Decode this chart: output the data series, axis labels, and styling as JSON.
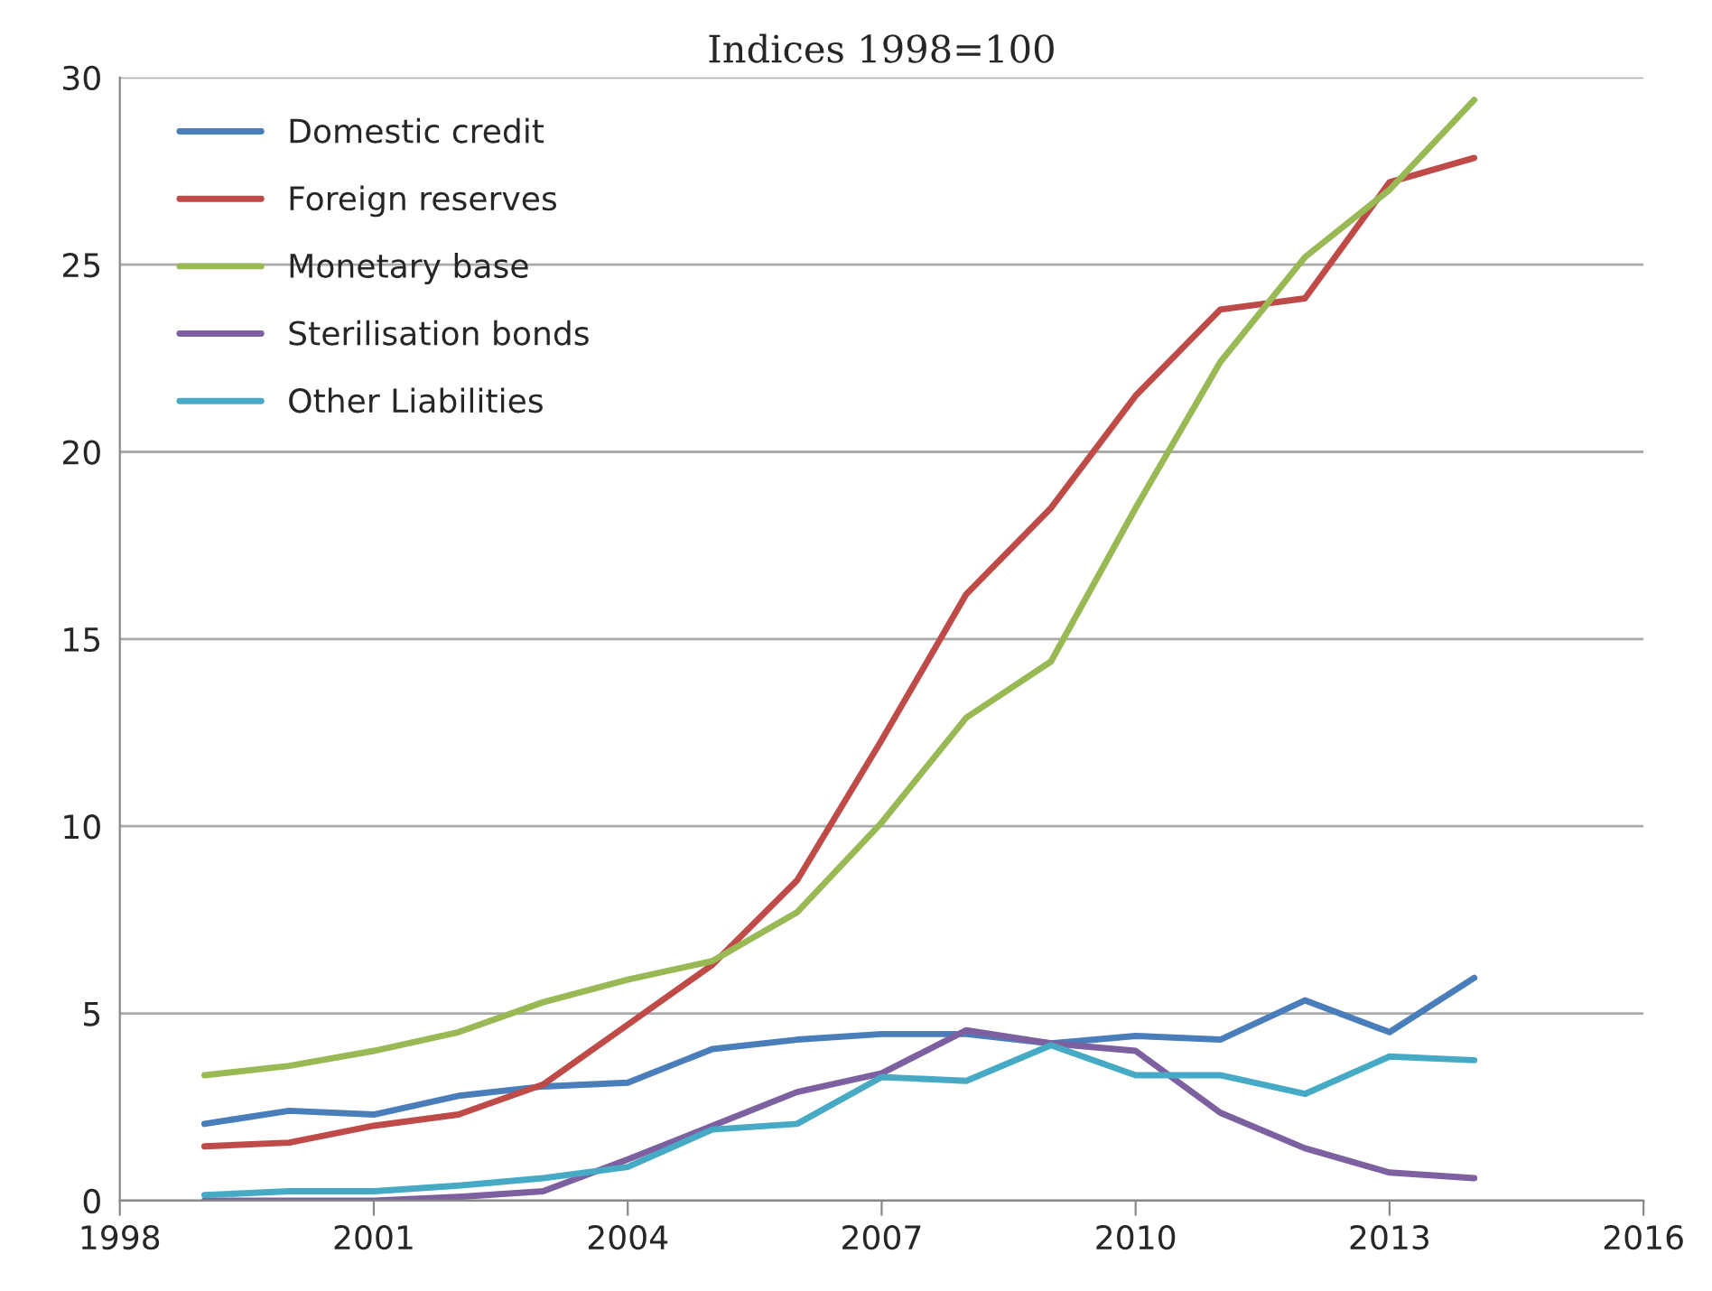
{
  "chart_data": {
    "type": "line",
    "title": "Indices 1998=100",
    "x": [
      1999,
      2000,
      2001,
      2002,
      2003,
      2004,
      2005,
      2006,
      2007,
      2008,
      2009,
      2010,
      2011,
      2012,
      2013,
      2014
    ],
    "series": [
      {
        "name": "Domestic credit",
        "color": "#4a7ebb",
        "values": [
          2.05,
          2.4,
          2.3,
          2.8,
          3.05,
          3.15,
          4.05,
          4.3,
          4.45,
          4.45,
          4.2,
          4.4,
          4.3,
          5.35,
          4.5,
          5.95
        ]
      },
      {
        "name": "Foreign reserves",
        "color": "#be4b48",
        "values": [
          1.45,
          1.55,
          2.0,
          2.3,
          3.1,
          4.7,
          6.3,
          8.55,
          12.3,
          16.2,
          18.5,
          21.5,
          23.8,
          24.1,
          27.2,
          27.85
        ]
      },
      {
        "name": "Monetary base",
        "color": "#98b954",
        "values": [
          3.35,
          3.6,
          4.0,
          4.5,
          5.3,
          5.9,
          6.4,
          7.7,
          10.1,
          12.9,
          14.4,
          18.5,
          22.4,
          25.2,
          27.0,
          29.4
        ]
      },
      {
        "name": "Sterilisation bonds",
        "color": "#7d60a0",
        "values": [
          0,
          0,
          0,
          0.1,
          0.25,
          1.1,
          2.0,
          2.9,
          3.4,
          4.55,
          4.2,
          4.0,
          2.35,
          1.4,
          0.75,
          0.6
        ]
      },
      {
        "name": "Other Liabilities",
        "color": "#46aac5",
        "values": [
          0.15,
          0.25,
          0.25,
          0.4,
          0.6,
          0.9,
          1.9,
          2.05,
          3.3,
          3.2,
          4.15,
          3.35,
          3.35,
          2.85,
          3.85,
          3.75
        ]
      }
    ],
    "xlim": [
      1998,
      2016
    ],
    "xticks": [
      1998,
      2001,
      2004,
      2007,
      2010,
      2013,
      2016
    ],
    "ylim": [
      0,
      30
    ],
    "yticks": [
      0,
      5,
      10,
      15,
      20,
      25,
      30
    ],
    "grid": "y",
    "legend": "top left",
    "marker": "none",
    "line_style": "solid"
  }
}
